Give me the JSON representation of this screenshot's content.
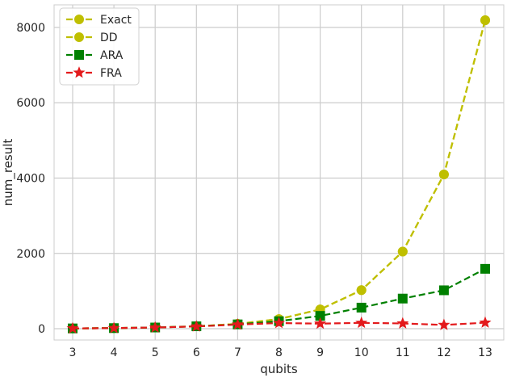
{
  "chart_data": {
    "type": "line",
    "title": "",
    "xlabel": "qubits",
    "ylabel": "num_result",
    "x": [
      3,
      4,
      5,
      6,
      7,
      8,
      9,
      10,
      11,
      12,
      13
    ],
    "xlim": [
      2.55,
      13.45
    ],
    "ylim": [
      -300,
      8600
    ],
    "xticks": [
      "3",
      "4",
      "5",
      "6",
      "7",
      "8",
      "9",
      "10",
      "11",
      "12",
      "13"
    ],
    "yticks": [
      0,
      2000,
      4000,
      6000,
      8000
    ],
    "ytick_labels": [
      "0",
      "2000",
      "4000",
      "6000",
      "8000"
    ],
    "grid": true,
    "legend_position": "top-left",
    "series": [
      {
        "name": "Exact",
        "color": "#bfbf00",
        "marker": "circle",
        "line": "dashed",
        "values": [
          8,
          16,
          32,
          64,
          128,
          256,
          512,
          1024,
          2048,
          4096,
          8192
        ]
      },
      {
        "name": "DD",
        "color": "#bfbf00",
        "marker": "circle",
        "line": "dashed",
        "values": [
          8,
          16,
          32,
          64,
          128,
          256,
          512,
          1024,
          2048,
          4096,
          8192
        ]
      },
      {
        "name": "ARA",
        "color": "#008000",
        "marker": "square",
        "line": "dashed",
        "values": [
          8,
          16,
          32,
          64,
          115,
          200,
          340,
          560,
          800,
          1020,
          1590
        ]
      },
      {
        "name": "FRA",
        "color": "#e31a1c",
        "marker": "star",
        "line": "dashed",
        "values": [
          8,
          16,
          32,
          60,
          110,
          150,
          135,
          155,
          140,
          100,
          160
        ]
      }
    ]
  }
}
